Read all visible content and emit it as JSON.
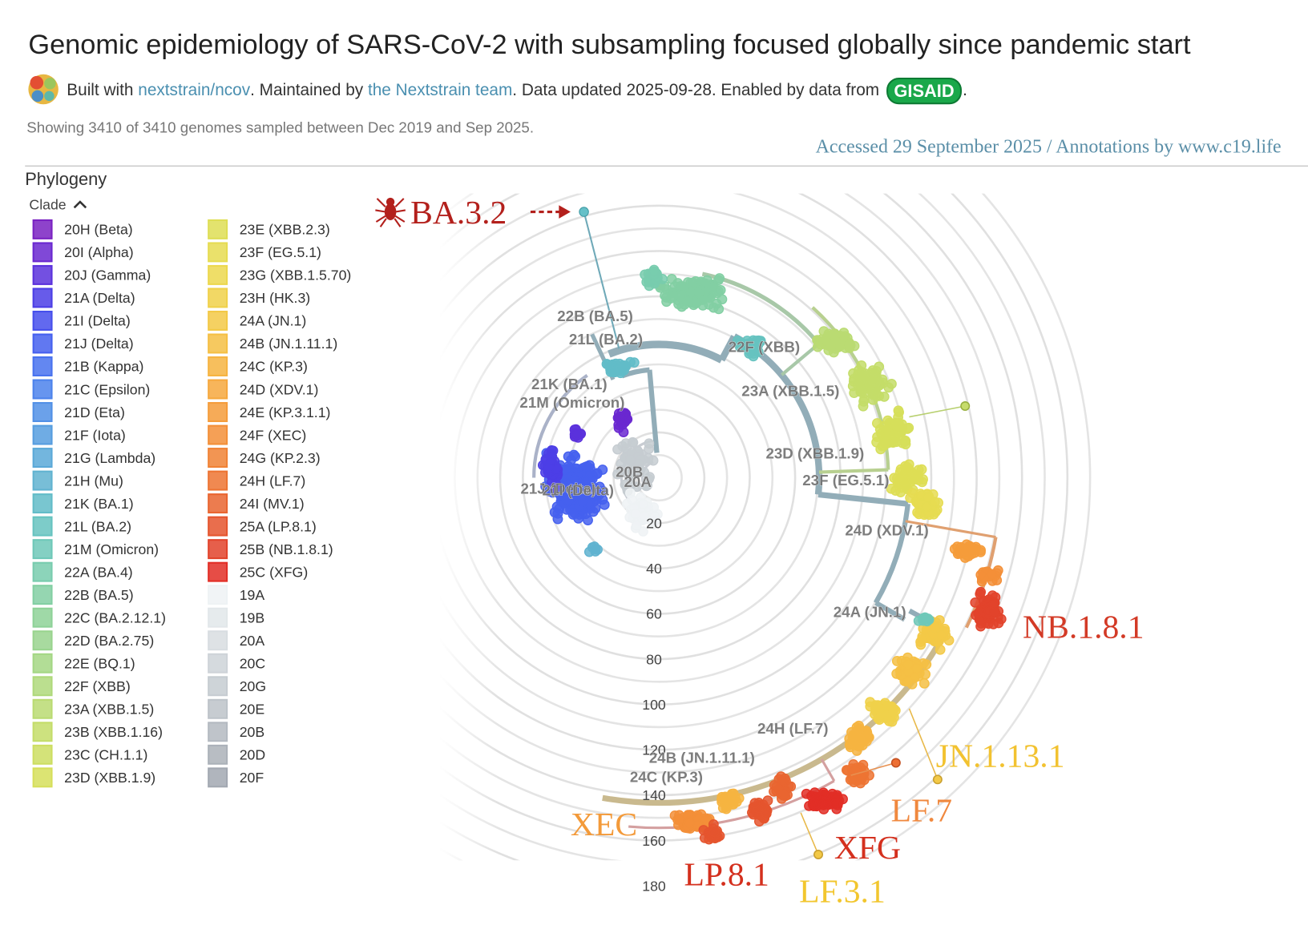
{
  "header": {
    "title": "Genomic epidemiology of SARS-CoV-2 with subsampling focused globally since pandemic start",
    "byline": {
      "built_with": "Built with ",
      "repo": "nextstrain/ncov",
      "maintained": ". Maintained by ",
      "team": "the Nextstrain team",
      "updated": ". Data updated 2025-09-28. Enabled by data from ",
      "gisaid": "GISAID",
      "end": "."
    },
    "showing": "Showing 3410 of 3410 genomes sampled between Dec 2019 and Sep 2025.",
    "accessed": "Accessed 29 September 2025 / Annotations by www.c19.life"
  },
  "legend": {
    "title": "Phylogeny",
    "color_by": "Clade",
    "items": [
      {
        "name": "20H (Beta)",
        "color": "#7a22c2"
      },
      {
        "name": "20I (Alpha)",
        "color": "#6a28d0"
      },
      {
        "name": "20J (Gamma)",
        "color": "#5b31dc"
      },
      {
        "name": "21A (Delta)",
        "color": "#4c3ee6"
      },
      {
        "name": "21I (Delta)",
        "color": "#464fec"
      },
      {
        "name": "21J (Delta)",
        "color": "#4560ef"
      },
      {
        "name": "21B (Kappa)",
        "color": "#4872ef"
      },
      {
        "name": "21C (Epsilon)",
        "color": "#4c82ec"
      },
      {
        "name": "21D (Eta)",
        "color": "#5190e6"
      },
      {
        "name": "21F (Iota)",
        "color": "#569ddf"
      },
      {
        "name": "21G (Lambda)",
        "color": "#5ba9d8"
      },
      {
        "name": "21H (Mu)",
        "color": "#60b3d0"
      },
      {
        "name": "21K (BA.1)",
        "color": "#62bcc8"
      },
      {
        "name": "21L (BA.2)",
        "color": "#66c3c0"
      },
      {
        "name": "21M (Omicron)",
        "color": "#6ec8b8"
      },
      {
        "name": "22A (BA.4)",
        "color": "#78ccae"
      },
      {
        "name": "22B (BA.5)",
        "color": "#82cfa3"
      },
      {
        "name": "22C (BA.2.12.1)",
        "color": "#8ed298"
      },
      {
        "name": "22D (BA.2.75)",
        "color": "#99d48e"
      },
      {
        "name": "22E (BQ.1)",
        "color": "#a4d784"
      },
      {
        "name": "22F (XBB)",
        "color": "#afd97b"
      },
      {
        "name": "23A (XBB.1.5)",
        "color": "#badb72"
      },
      {
        "name": "23B (XBB.1.16)",
        "color": "#c4dd69"
      },
      {
        "name": "23C (CH.1.1)",
        "color": "#cdde61"
      },
      {
        "name": "23D (XBB.1.9)",
        "color": "#d6df5a"
      },
      {
        "name": "23E (XBB.2.3)",
        "color": "#dede55"
      },
      {
        "name": "23F (EG.5.1)",
        "color": "#e6dc51"
      },
      {
        "name": "23G (XBB.1.5.70)",
        "color": "#ecd84d"
      },
      {
        "name": "23H (HK.3)",
        "color": "#f0d14a"
      },
      {
        "name": "24A (JN.1)",
        "color": "#f3c947"
      },
      {
        "name": "24B (JN.1.11.1)",
        "color": "#f5bf44"
      },
      {
        "name": "24C (KP.3)",
        "color": "#f6b441"
      },
      {
        "name": "24D (XDV.1)",
        "color": "#f6a83e"
      },
      {
        "name": "24E (KP.3.1.1)",
        "color": "#f59c3b"
      },
      {
        "name": "24F (XEC)",
        "color": "#f38f38"
      },
      {
        "name": "24G (KP.2.3)",
        "color": "#f08235"
      },
      {
        "name": "24H (LF.7)",
        "color": "#ed7433"
      },
      {
        "name": "24I (MV.1)",
        "color": "#e96530"
      },
      {
        "name": "25A (LP.8.1)",
        "color": "#e5552e"
      },
      {
        "name": "25B (NB.1.8.1)",
        "color": "#e2432b"
      },
      {
        "name": "25C (XFG)",
        "color": "#e22e26"
      },
      {
        "name": "19A",
        "color": "#eef2f4"
      },
      {
        "name": "19B",
        "color": "#e2e7ea"
      },
      {
        "name": "20A",
        "color": "#d8dde1"
      },
      {
        "name": "20C",
        "color": "#ced3d8"
      },
      {
        "name": "20G",
        "color": "#c6ccd1"
      },
      {
        "name": "20E",
        "color": "#bdc3c9"
      },
      {
        "name": "20B",
        "color": "#b4bac1"
      },
      {
        "name": "20D",
        "color": "#abb1b9"
      },
      {
        "name": "20F",
        "color": "#a2a8b1"
      }
    ]
  },
  "tree": {
    "radial_ticks": [
      20,
      40,
      60,
      80,
      100,
      120,
      140,
      160,
      180
    ],
    "clade_labels": [
      "22B (BA.5)",
      "21L (BA.2)",
      "21K (BA.1)",
      "21M (Omicron)",
      "22F (XBB)",
      "23A (XBB.1.5)",
      "23D (XBB.1.9)",
      "23F (EG.5.1)",
      "20B",
      "20A",
      "21J (Delta)",
      "21I (Delta)",
      "24D (XDV.1)",
      "24A (JN.1)",
      "24H (LF.7)",
      "24B (JN.1.11.1)",
      "24C (KP.3)"
    ],
    "annotations": [
      {
        "text": "BA.3.2",
        "color": "#b3201c"
      },
      {
        "text": "NB.1.8.1",
        "color": "#d33a26"
      },
      {
        "text": "JN.1.13.1",
        "color": "#f2c230"
      },
      {
        "text": "LF.7",
        "color": "#f0883e"
      },
      {
        "text": "XFG",
        "color": "#d4301e"
      },
      {
        "text": "LF.3.1",
        "color": "#f2c62e"
      },
      {
        "text": "LP.8.1",
        "color": "#d4301e"
      },
      {
        "text": "XEC",
        "color": "#f39a3a"
      }
    ]
  }
}
